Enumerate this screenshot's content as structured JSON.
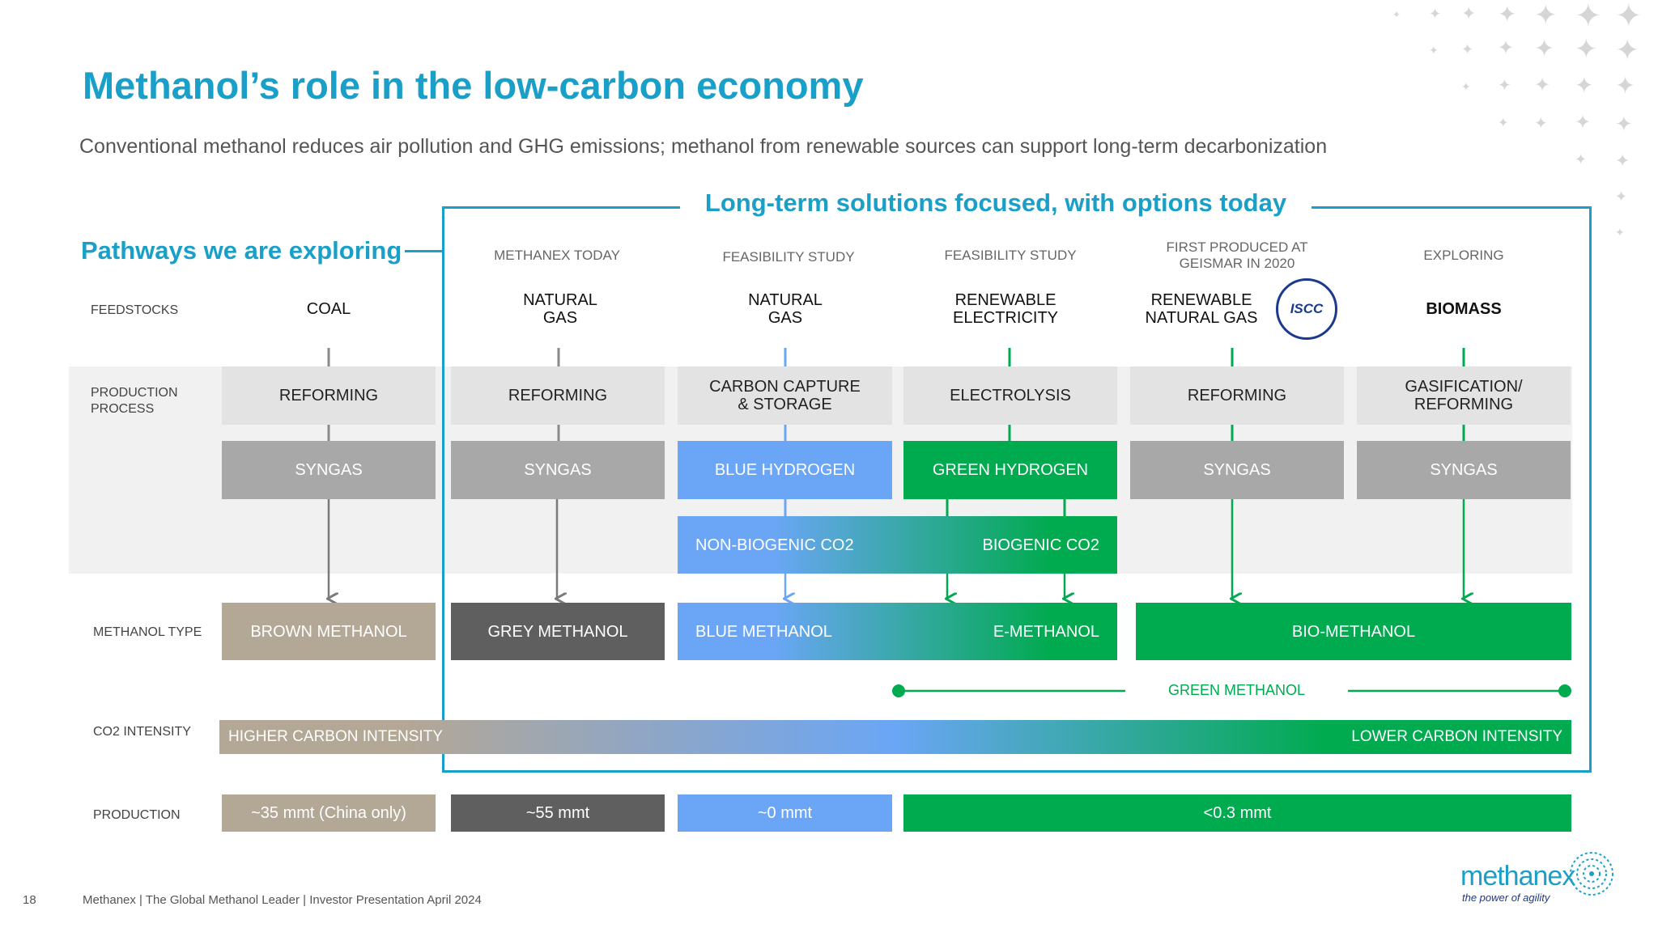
{
  "title": "Methanol’s role in the low-carbon economy",
  "subtitle": "Conventional methanol reduces air pollution and GHG emissions; methanol from renewable sources can support long-term decarbonization",
  "callouts": {
    "long_term": "Long-term solutions focused, with options today",
    "pathways": "Pathways we are exploring"
  },
  "row_labels": {
    "feedstocks": "FEEDSTOCKS",
    "production_process_1": "PRODUCTION",
    "production_process_2": "PROCESS",
    "methanol_type": "METHANOL TYPE",
    "co2_intensity": "CO2 INTENSITY",
    "production": "PRODUCTION"
  },
  "columns": [
    {
      "header": "",
      "feed_1": "COAL",
      "feed_2": "",
      "process_1": "REFORMING",
      "process_2": "",
      "intermediate": "SYNGAS"
    },
    {
      "header": "METHANEX TODAY",
      "feed_1": "NATURAL",
      "feed_2": "GAS",
      "process_1": "REFORMING",
      "process_2": "",
      "intermediate": "SYNGAS"
    },
    {
      "header": "FEASIBILITY STUDY",
      "feed_1": "NATURAL",
      "feed_2": "GAS",
      "process_1": "CARBON CAPTURE",
      "process_2": "& STORAGE",
      "intermediate": "BLUE HYDROGEN"
    },
    {
      "header": "FEASIBILITY STUDY",
      "feed_1": "RENEWABLE",
      "feed_2": "ELECTRICITY",
      "process_1": "ELECTROLYSIS",
      "process_2": "",
      "intermediate": "GREEN HYDROGEN"
    },
    {
      "header_1": "FIRST PRODUCED AT",
      "header_2": "GEISMAR IN 2020",
      "feed_1": "RENEWABLE",
      "feed_2": "NATURAL GAS",
      "process_1": "REFORMING",
      "process_2": "",
      "intermediate": "SYNGAS",
      "badge": "ISCC"
    },
    {
      "header": "EXPLORING",
      "feed_1": "BIOMASS",
      "feed_2": "",
      "process_1": "GASIFICATION/",
      "process_2": "REFORMING",
      "intermediate": "SYNGAS"
    }
  ],
  "co2_box": {
    "left": "NON-BIOGENIC CO2",
    "right": "BIOGENIC CO2"
  },
  "methanol_types": {
    "brown": "BROWN METHANOL",
    "grey": "GREY METHANOL",
    "blue": "BLUE METHANOL",
    "e": "E-METHANOL",
    "bio": "BIO-METHANOL"
  },
  "green_methanol": "GREEN METHANOL",
  "intensity": {
    "higher": "HIGHER CARBON INTENSITY",
    "lower": "LOWER CARBON INTENSITY"
  },
  "production": {
    "brown": "~35 mmt (China only)",
    "grey": "~55 mmt",
    "blue": "~0 mmt",
    "green": "<0.3 mmt"
  },
  "footer": {
    "page": "18",
    "text": "Methanex | The Global Methanol Leader | Investor Presentation April 2024",
    "logo": "methanex",
    "tagline": "the power of agility"
  },
  "colors": {
    "accent": "#1aa0c8",
    "green": "#00aa4f",
    "blue": "#6aa6f5",
    "grey": "#5f5f5f",
    "brown": "#b3a796",
    "syngas": "#a8a8a8"
  }
}
